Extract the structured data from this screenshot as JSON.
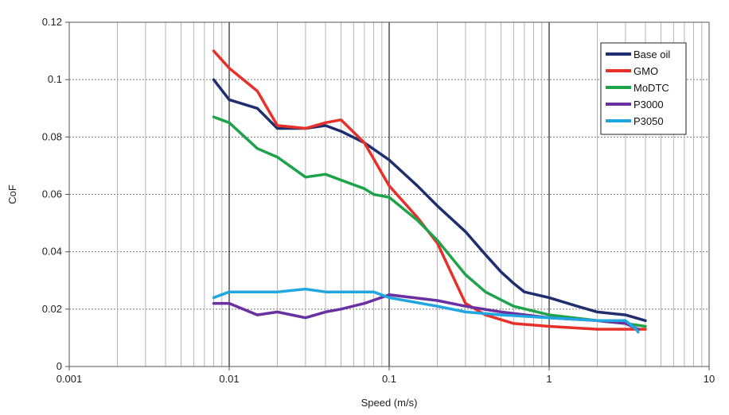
{
  "chart_data": {
    "type": "line",
    "xlabel": "Speed (m/s)",
    "ylabel": "CoF",
    "x_scale": "log",
    "xlim": [
      0.001,
      10
    ],
    "ylim": [
      0,
      0.12
    ],
    "x_tick_labels": [
      "0.001",
      "0.01",
      "0.1",
      "1",
      "10"
    ],
    "y_tick_labels": [
      "0",
      "0.02",
      "0.04",
      "0.06",
      "0.08",
      "0.1",
      "0.12"
    ],
    "grid": "on (major and minor vertical, dashed horizontal)",
    "legend_position": "top-right",
    "series": [
      {
        "name": "Base oil",
        "color": "#1f2e6e",
        "points": [
          [
            0.008,
            0.1
          ],
          [
            0.01,
            0.093
          ],
          [
            0.015,
            0.09
          ],
          [
            0.02,
            0.083
          ],
          [
            0.03,
            0.083
          ],
          [
            0.04,
            0.084
          ],
          [
            0.05,
            0.082
          ],
          [
            0.07,
            0.078
          ],
          [
            0.1,
            0.072
          ],
          [
            0.15,
            0.063
          ],
          [
            0.2,
            0.056
          ],
          [
            0.3,
            0.047
          ],
          [
            0.4,
            0.039
          ],
          [
            0.5,
            0.033
          ],
          [
            0.6,
            0.029
          ],
          [
            0.7,
            0.026
          ],
          [
            1.0,
            0.024
          ],
          [
            1.5,
            0.021
          ],
          [
            2.0,
            0.019
          ],
          [
            3.0,
            0.018
          ],
          [
            4.0,
            0.016
          ]
        ]
      },
      {
        "name": "GMO",
        "color": "#e8302a",
        "points": [
          [
            0.008,
            0.11
          ],
          [
            0.01,
            0.104
          ],
          [
            0.015,
            0.096
          ],
          [
            0.02,
            0.084
          ],
          [
            0.03,
            0.083
          ],
          [
            0.04,
            0.085
          ],
          [
            0.05,
            0.086
          ],
          [
            0.07,
            0.078
          ],
          [
            0.1,
            0.063
          ],
          [
            0.15,
            0.052
          ],
          [
            0.2,
            0.043
          ],
          [
            0.3,
            0.022
          ],
          [
            0.4,
            0.018
          ],
          [
            0.6,
            0.015
          ],
          [
            1.0,
            0.014
          ],
          [
            2.0,
            0.013
          ],
          [
            4.0,
            0.013
          ]
        ]
      },
      {
        "name": "MoDTC",
        "color": "#1fa34a",
        "points": [
          [
            0.008,
            0.087
          ],
          [
            0.01,
            0.085
          ],
          [
            0.015,
            0.076
          ],
          [
            0.02,
            0.073
          ],
          [
            0.03,
            0.066
          ],
          [
            0.04,
            0.067
          ],
          [
            0.05,
            0.065
          ],
          [
            0.07,
            0.062
          ],
          [
            0.08,
            0.06
          ],
          [
            0.1,
            0.059
          ],
          [
            0.15,
            0.051
          ],
          [
            0.2,
            0.044
          ],
          [
            0.3,
            0.032
          ],
          [
            0.4,
            0.026
          ],
          [
            0.6,
            0.021
          ],
          [
            1.0,
            0.018
          ],
          [
            2.0,
            0.016
          ],
          [
            3.0,
            0.015
          ],
          [
            4.0,
            0.014
          ]
        ]
      },
      {
        "name": "P3000",
        "color": "#6a2fa0",
        "points": [
          [
            0.008,
            0.022
          ],
          [
            0.01,
            0.022
          ],
          [
            0.015,
            0.018
          ],
          [
            0.02,
            0.019
          ],
          [
            0.03,
            0.017
          ],
          [
            0.04,
            0.019
          ],
          [
            0.05,
            0.02
          ],
          [
            0.07,
            0.022
          ],
          [
            0.1,
            0.025
          ],
          [
            0.2,
            0.023
          ],
          [
            0.3,
            0.021
          ],
          [
            0.5,
            0.019
          ],
          [
            1.0,
            0.017
          ],
          [
            2.0,
            0.016
          ],
          [
            3.0,
            0.015
          ],
          [
            3.6,
            0.013
          ]
        ]
      },
      {
        "name": "P3050",
        "color": "#21a6e0",
        "points": [
          [
            0.008,
            0.024
          ],
          [
            0.01,
            0.026
          ],
          [
            0.015,
            0.026
          ],
          [
            0.02,
            0.026
          ],
          [
            0.03,
            0.027
          ],
          [
            0.04,
            0.026
          ],
          [
            0.05,
            0.026
          ],
          [
            0.07,
            0.026
          ],
          [
            0.08,
            0.026
          ],
          [
            0.1,
            0.024
          ],
          [
            0.2,
            0.021
          ],
          [
            0.3,
            0.019
          ],
          [
            0.5,
            0.018
          ],
          [
            1.0,
            0.017
          ],
          [
            2.0,
            0.016
          ],
          [
            3.0,
            0.016
          ],
          [
            3.5,
            0.013
          ],
          [
            3.6,
            0.012
          ]
        ]
      }
    ]
  }
}
